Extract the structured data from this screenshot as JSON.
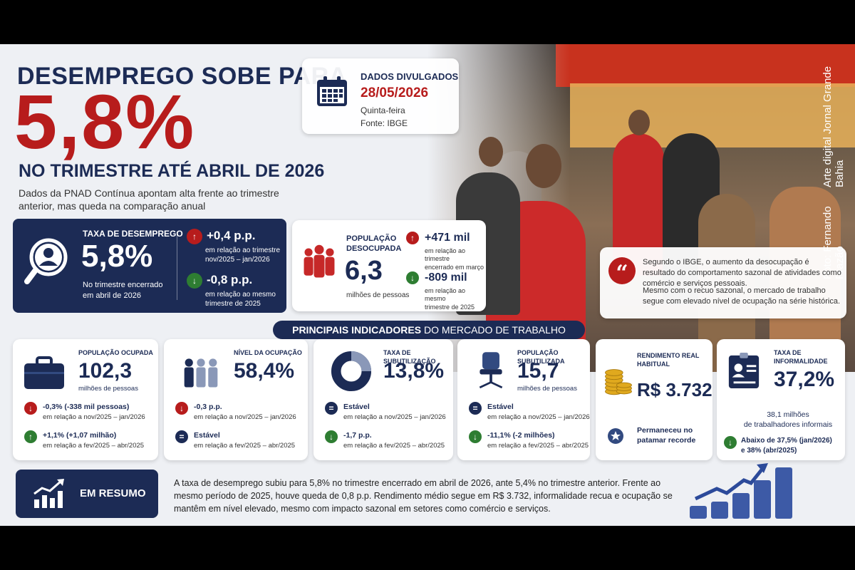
{
  "header": {
    "line1": "DESEMPREGO SOBE PARA",
    "big_value": "5,8%",
    "line2": "NO TRIMESTRE ATÉ ABRIL DE 2026",
    "subtitle": "Dados da PNAD Contínua apontam alta frente ao trimestre anterior, mas queda na comparação anual"
  },
  "release": {
    "label": "DADOS DIVULGADOS",
    "date": "28/05/2026",
    "weekday": "Quinta-feira",
    "source": "Fonte: IBGE"
  },
  "photo_credit": {
    "photo": "Foto: Fernando Frazão",
    "art": "Arte digital Jornal Grande Bahia"
  },
  "unemployment": {
    "title": "TAXA DE DESEMPREGO",
    "value": "5,8%",
    "desc_line1": "No trimestre encerrado",
    "desc_line2": "em abril de 2026",
    "change1_value": "+0,4 p.p.",
    "change1_line1": "em relação ao trimestre",
    "change1_line2": "nov/2025 – jan/2026",
    "change2_value": "-0,8 p.p.",
    "change2_line1": "em relação ao mesmo",
    "change2_line2": "trimestre de 2025"
  },
  "unemployed_population": {
    "title_line1": "POPULAÇÃO",
    "title_line2": "DESOCUPADA",
    "value": "6,3",
    "unit": "milhões de pessoas",
    "change1_value": "+471 mil",
    "change1_line1": "em relação ao trimestre",
    "change1_line2": "encerrado em março",
    "change2_value": "-809 mil",
    "change2_line1": "em relação ao mesmo",
    "change2_line2": "trimestre de 2025"
  },
  "quote": {
    "p1": "Segundo o IBGE, o aumento da desocupação é resultado do comportamento sazonal de atividades como comércio e serviços pessoais.",
    "p2": "Mesmo com o recuo sazonal, o mercado de trabalho segue com elevado nível de ocupação na série histórica."
  },
  "section_title_bold": "PRINCIPAIS INDICADORES",
  "section_title_rest": " DO MERCADO DE TRABALHO",
  "indicators": [
    {
      "title": "POPULAÇÃO OCUPADA",
      "value": "102,3",
      "unit": "milhões de pessoas",
      "c1_label": "-0,3% (-338 mil pessoas)",
      "c1_desc": "em relação a nov/2025 – jan/2026",
      "c2_label": "+1,1% (+1,07 milhão)",
      "c2_desc": "em relação a fev/2025 – abr/2025"
    },
    {
      "title": "NÍVEL DA OCUPAÇÃO",
      "value": "58,4%",
      "c1_label": "-0,3 p.p.",
      "c1_desc": "em relação a nov/2025 – jan/2026",
      "c2_label": "Estável",
      "c2_desc": "em relação a fev/2025 – abr/2025"
    },
    {
      "title": "TAXA DE SUBUTILIZAÇÃO",
      "value": "13,8%",
      "c1_label": "Estável",
      "c1_desc": "em relação a nov/2025 – jan/2026",
      "c2_label": "-1,7 p.p.",
      "c2_desc": "em relação a fev/2025 – abr/2025"
    },
    {
      "title": "POPULAÇÃO SUBUTILIZADA",
      "value": "15,7",
      "unit": "milhões de pessoas",
      "c1_label": "Estável",
      "c1_desc": "em relação a nov/2025 – jan/2026",
      "c2_label": "-11,1% (-2 milhões)",
      "c2_desc": "em relação a fev/2025 – abr/2025"
    },
    {
      "title_line1": "RENDIMENTO REAL",
      "title_line2": "HABITUAL",
      "value": "R$ 3.732",
      "note_line1": "Permaneceu no",
      "note_line2": "patamar recorde"
    },
    {
      "title_line1": "TAXA DE",
      "title_line2": "INFORMALIDADE",
      "value": "37,2%",
      "unit_line1": "38,1 milhões",
      "unit_line2": "de trabalhadores informais",
      "c1_line1": "Abaixo de 37,5% (jan/2026)",
      "c1_line2": "e 38% (abr/2025)"
    }
  ],
  "summary": {
    "label": "EM RESUMO",
    "text": "A taxa de desemprego subiu para 5,8% no trimestre encerrado em abril de 2026, ante 5,4% no trimestre anterior. Frente ao mesmo período de 2025, houve queda de 0,8 p.p. Rendimento médio segue em R$ 3.732, informalidade recua e ocupação se mantêm em nível elevado, mesmo com impacto sazonal em setores como comércio e serviços."
  },
  "colors": {
    "navy": "#1c2b55",
    "red": "#b71c1c",
    "green": "#2e7d32"
  },
  "icons": [
    "calendar-icon",
    "magnifier-user-icon",
    "arrow-up-icon",
    "arrow-down-icon",
    "people-icon",
    "quote-icon",
    "briefcase-icon",
    "donut-icon",
    "chair-icon",
    "coins-icon",
    "id-card-icon",
    "star-badge-icon",
    "growth-chart-icon",
    "equal-icon"
  ]
}
